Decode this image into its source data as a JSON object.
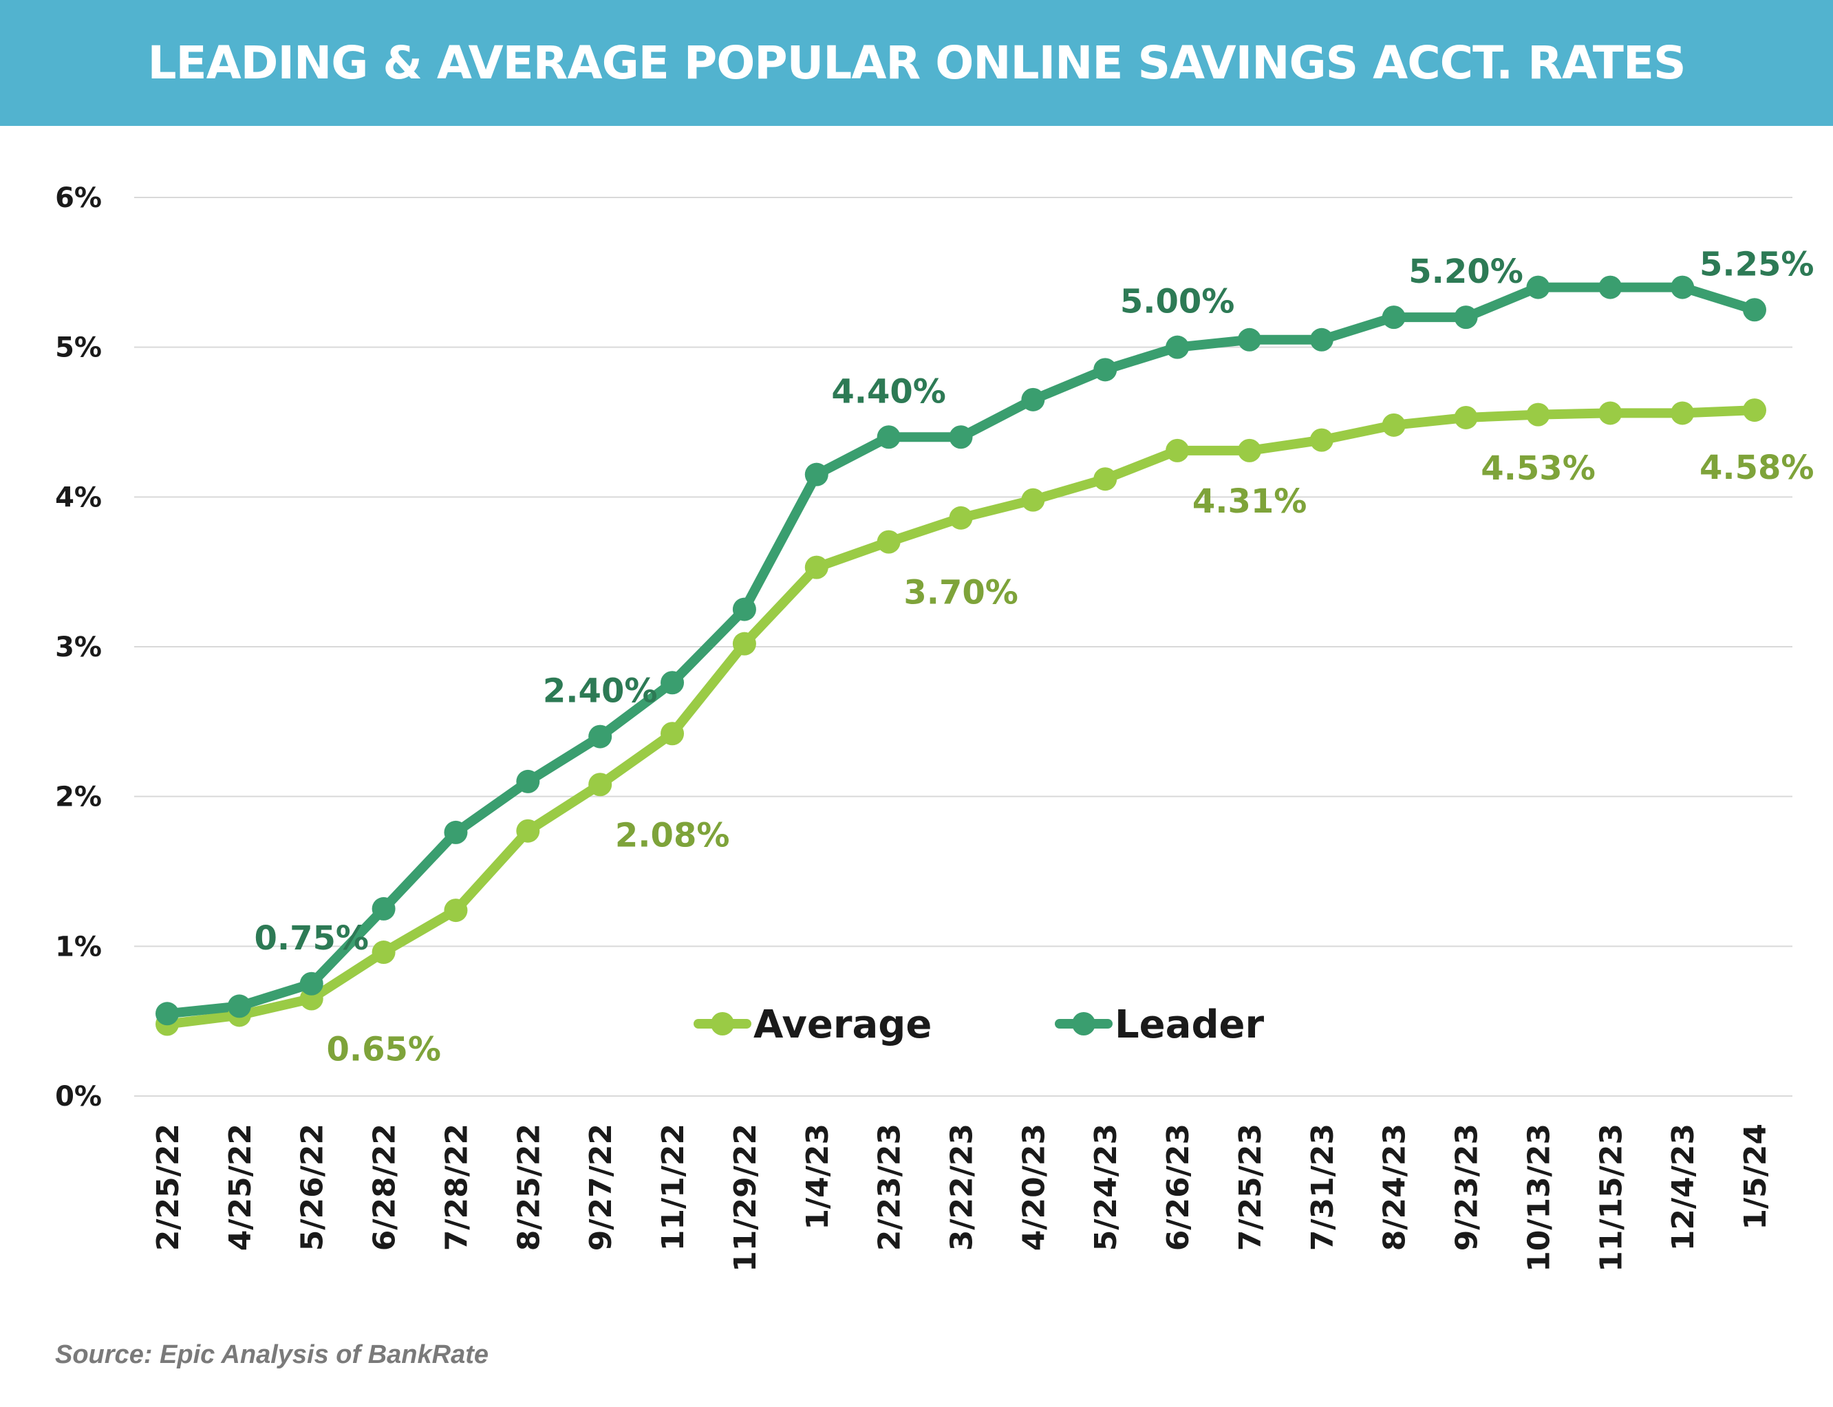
{
  "header": {
    "title": "LEADING & AVERAGE POPULAR ONLINE SAVINGS ACCT. RATES"
  },
  "source": "Source: Epic Analysis of BankRate",
  "colors": {
    "header_bg": "#52b3cf",
    "average": "#9acb45",
    "leader": "#3a9e6f",
    "average_label": "#7ea33a",
    "leader_label": "#2d7a55"
  },
  "chart_data": {
    "type": "line",
    "title": "LEADING & AVERAGE POPULAR ONLINE SAVINGS ACCT. RATES",
    "xlabel": "",
    "ylabel": "",
    "ylim": [
      0,
      6
    ],
    "yticks": [
      "0%",
      "1%",
      "2%",
      "3%",
      "4%",
      "5%",
      "6%"
    ],
    "grid": "horizontal",
    "legend_position": "bottom-center",
    "categories": [
      "2/25/22",
      "4/25/22",
      "5/26/22",
      "6/28/22",
      "7/28/22",
      "8/25/22",
      "9/27/22",
      "11/1/22",
      "11/29/22",
      "1/4/23",
      "2/23/23",
      "3/22/23",
      "4/20/23",
      "5/24/23",
      "6/26/23",
      "7/25/23",
      "7/31/23",
      "8/24/23",
      "9/23/23",
      "10/13/23",
      "11/15/23",
      "12/4/23",
      "1/5/24"
    ],
    "series": [
      {
        "name": "Average",
        "values": [
          0.48,
          0.54,
          0.65,
          0.96,
          1.24,
          1.77,
          2.08,
          2.42,
          3.02,
          3.53,
          3.7,
          3.86,
          3.98,
          4.12,
          4.31,
          4.31,
          4.38,
          4.48,
          4.53,
          4.55,
          4.56,
          4.56,
          4.58
        ]
      },
      {
        "name": "Leader",
        "values": [
          0.55,
          0.6,
          0.75,
          1.25,
          1.76,
          2.1,
          2.4,
          2.76,
          3.25,
          4.15,
          4.4,
          4.4,
          4.65,
          4.85,
          5.0,
          5.05,
          5.05,
          5.2,
          5.2,
          5.4,
          5.4,
          5.4,
          5.25
        ]
      }
    ],
    "annotations": [
      {
        "series": "Leader",
        "index": 2,
        "text": "0.75%"
      },
      {
        "series": "Leader",
        "index": 6,
        "text": "2.40%"
      },
      {
        "series": "Leader",
        "index": 10,
        "text": "4.40%"
      },
      {
        "series": "Leader",
        "index": 14,
        "text": "5.00%"
      },
      {
        "series": "Leader",
        "index": 18,
        "text": "5.20%"
      },
      {
        "series": "Leader",
        "index": 22,
        "text": "5.25%"
      },
      {
        "series": "Average",
        "index": 2,
        "text": "0.65%"
      },
      {
        "series": "Average",
        "index": 6,
        "text": "2.08%"
      },
      {
        "series": "Average",
        "index": 10,
        "text": "3.70%"
      },
      {
        "series": "Average",
        "index": 14,
        "text": "4.31%"
      },
      {
        "series": "Average",
        "index": 18,
        "text": "4.53%"
      },
      {
        "series": "Average",
        "index": 22,
        "text": "4.58%"
      }
    ]
  }
}
